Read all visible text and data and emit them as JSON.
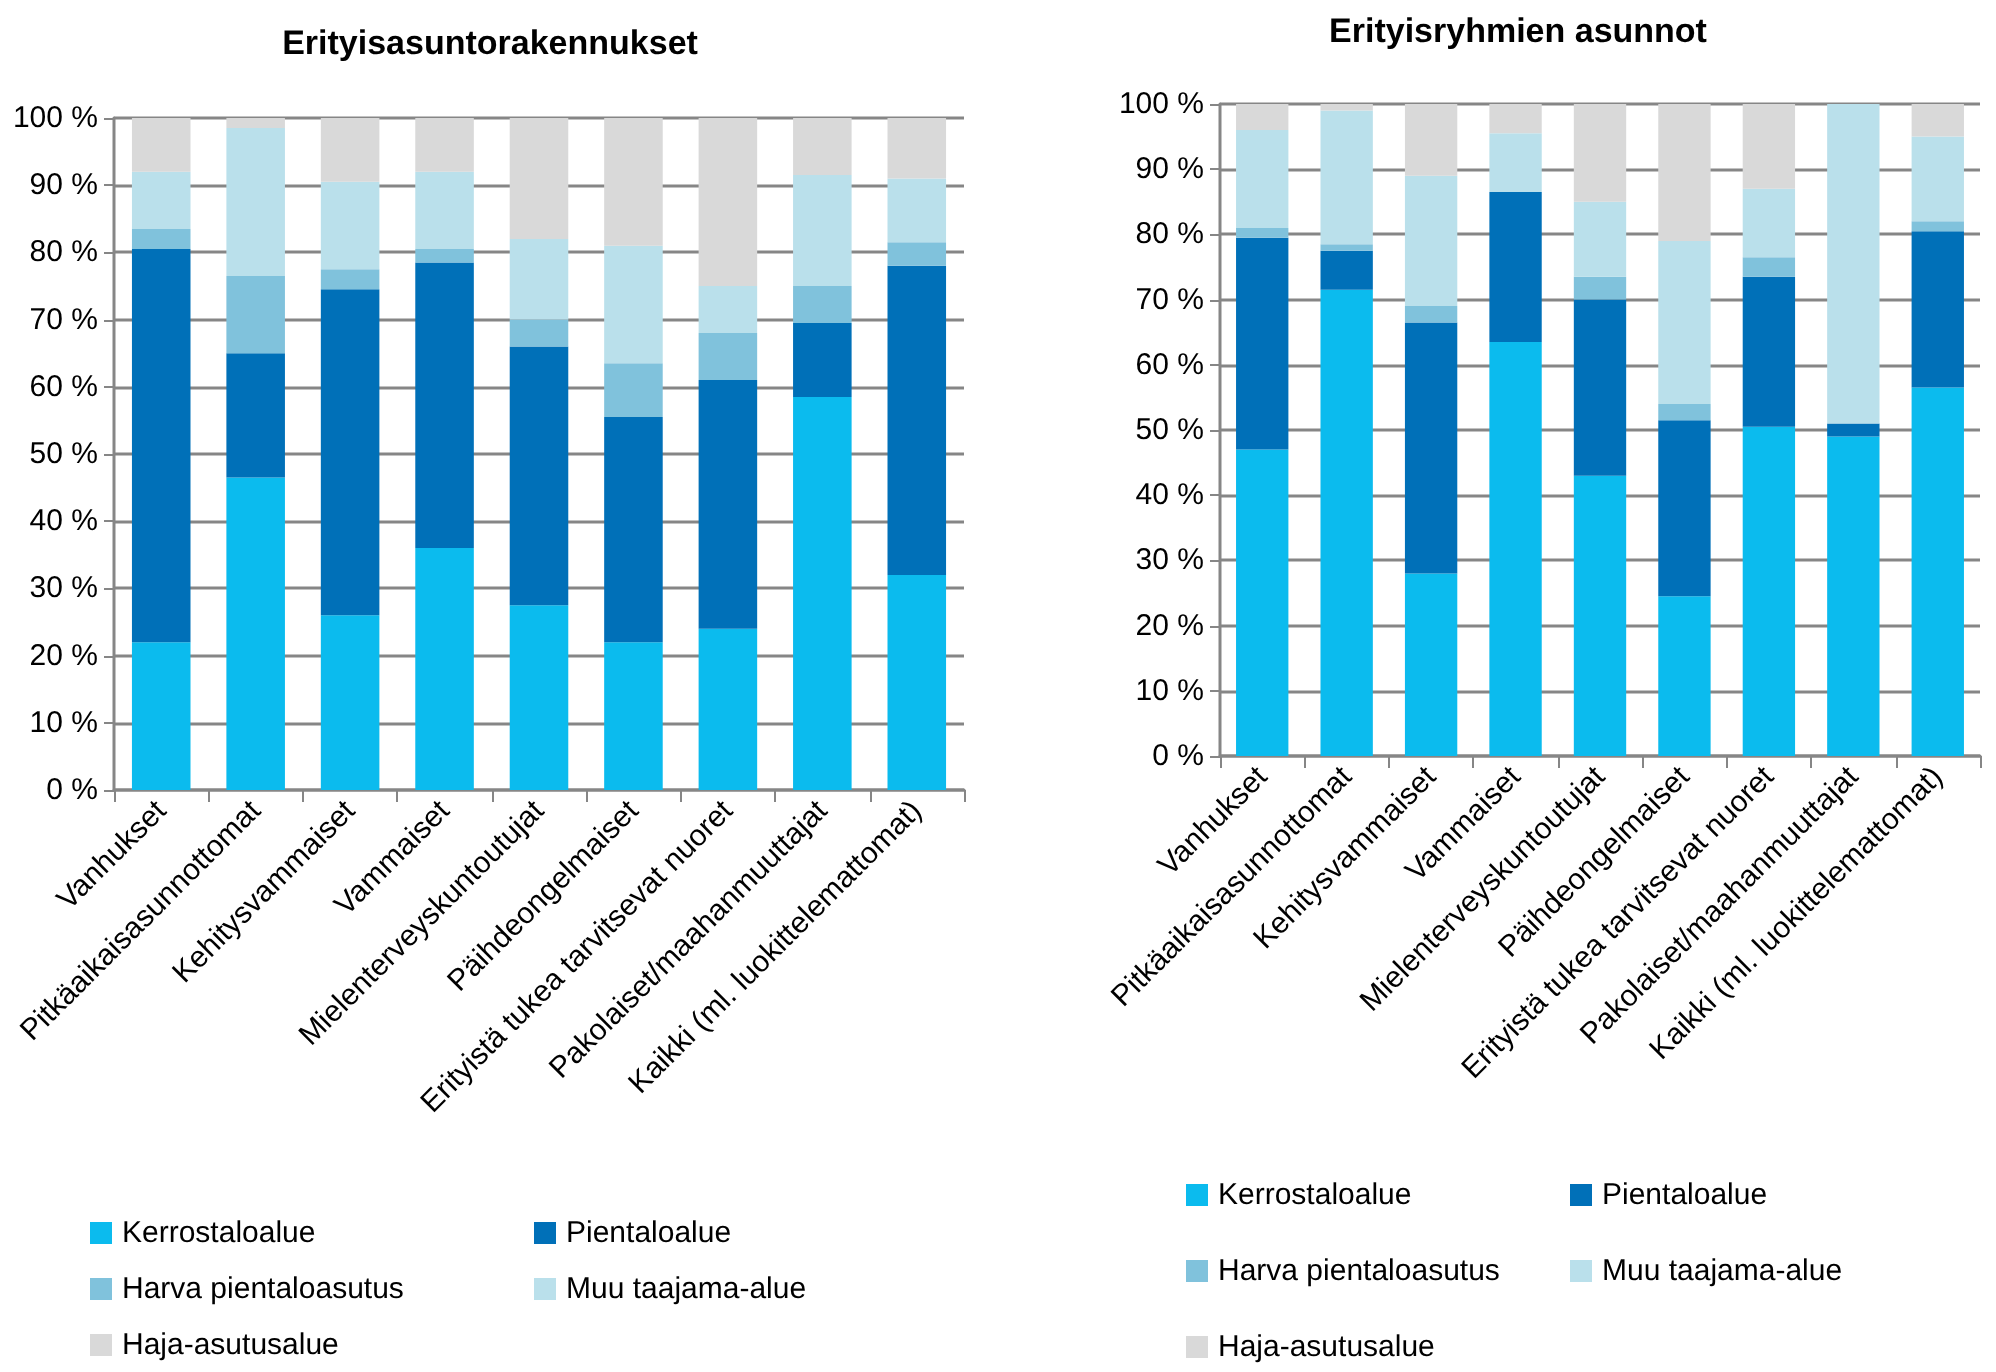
{
  "chart_data": [
    {
      "type": "bar",
      "title": "Erityisasuntorakennukset",
      "stacked": true,
      "grid": "y",
      "legend": "bottom",
      "categories": [
        "Vanhukset",
        "Pitkäaikaisasunnottomat",
        "Kehitysvammaiset",
        "Vammaiset",
        "Mielenterveyskuntoutujat",
        "Päihdeongelmaiset",
        "Erityistä tukea tarvitsevat nuoret",
        "Pakolaiset/maahanmuuttajat",
        "Kaikki (ml. luokittelemattomat)"
      ],
      "ylim": [
        0,
        100
      ],
      "yticks": [
        {
          "value": 0,
          "label": "0 %"
        },
        {
          "value": 10,
          "label": "10 %"
        },
        {
          "value": 20,
          "label": "20 %"
        },
        {
          "value": 30,
          "label": "30 %"
        },
        {
          "value": 40,
          "label": "40 %"
        },
        {
          "value": 50,
          "label": "50 %"
        },
        {
          "value": 60,
          "label": "60 %"
        },
        {
          "value": 70,
          "label": "70 %"
        },
        {
          "value": 80,
          "label": "80 %"
        },
        {
          "value": 90,
          "label": "90 %"
        },
        {
          "value": 100,
          "label": "100 %"
        }
      ],
      "series": [
        {
          "name": "Kerrostaloalue",
          "color": "#0bbbee",
          "values": [
            22,
            46.5,
            26,
            36,
            27.5,
            22,
            24,
            58.5,
            32
          ]
        },
        {
          "name": "Pientaloalue",
          "color": "#0070b8",
          "values": [
            58.5,
            18.5,
            48.5,
            42.5,
            38.5,
            33.5,
            37,
            11,
            46
          ]
        },
        {
          "name": "Harva pientaloasutus",
          "color": "#80c2dc",
          "values": [
            3,
            11.5,
            3,
            2,
            4,
            8,
            7,
            5.5,
            3.5
          ]
        },
        {
          "name": "Muu taajama-alue",
          "color": "#bae0eb",
          "values": [
            8.5,
            22,
            13,
            11.5,
            12,
            17.5,
            7,
            16.5,
            9.5
          ]
        },
        {
          "name": "Haja-asutusalue",
          "color": "#d9d9d9",
          "values": [
            8,
            1.5,
            9.5,
            8,
            18,
            19,
            25,
            8.5,
            9
          ]
        }
      ]
    },
    {
      "type": "bar",
      "title": "Erityisryhmien asunnot",
      "stacked": true,
      "grid": "y",
      "legend": "bottom",
      "categories": [
        "Vanhukset",
        "Pitkäaikaisasunnottomat",
        "Kehitysvammaiset",
        "Vammaiset",
        "Mielenterveyskuntoutujat",
        "Päihdeongelmaiset",
        "Erityistä tukea tarvitsevat nuoret",
        "Pakolaiset/maahanmuuttajat",
        "Kaikki (ml. luokittelemattomat)"
      ],
      "ylim": [
        0,
        100
      ],
      "yticks": [
        {
          "value": 0,
          "label": "0 %"
        },
        {
          "value": 10,
          "label": "10 %"
        },
        {
          "value": 20,
          "label": "20 %"
        },
        {
          "value": 30,
          "label": "30 %"
        },
        {
          "value": 40,
          "label": "40 %"
        },
        {
          "value": 50,
          "label": "50 %"
        },
        {
          "value": 60,
          "label": "60 %"
        },
        {
          "value": 70,
          "label": "70 %"
        },
        {
          "value": 80,
          "label": "80 %"
        },
        {
          "value": 90,
          "label": "90 %"
        },
        {
          "value": 100,
          "label": "100 %"
        }
      ],
      "series": [
        {
          "name": "Kerrostaloalue",
          "color": "#0bbbee",
          "values": [
            47,
            71.5,
            28,
            63.5,
            43,
            24.5,
            50.5,
            49,
            56.5
          ]
        },
        {
          "name": "Pientaloalue",
          "color": "#0070b8",
          "values": [
            32.5,
            6,
            38.5,
            23,
            27,
            27,
            23,
            2,
            24
          ]
        },
        {
          "name": "Harva pientaloasutus",
          "color": "#80c2dc",
          "values": [
            1.5,
            1,
            2.5,
            0,
            3.5,
            2.5,
            3,
            0,
            1.5
          ]
        },
        {
          "name": "Muu taajama-alue",
          "color": "#bae0eb",
          "values": [
            15,
            20.5,
            20,
            9,
            11.5,
            25,
            10.5,
            49,
            13
          ]
        },
        {
          "name": "Haja-asutusalue",
          "color": "#d9d9d9",
          "values": [
            4,
            1,
            11,
            4.5,
            15,
            21,
            13,
            0,
            5
          ]
        }
      ]
    }
  ]
}
